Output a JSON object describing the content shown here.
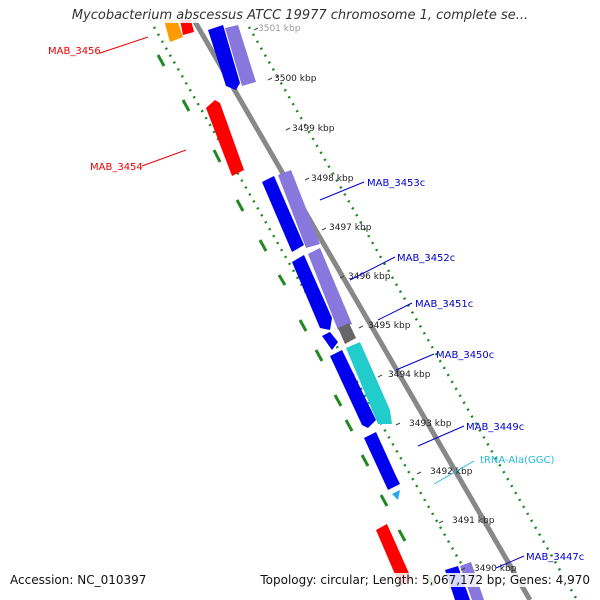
{
  "header": {
    "title": "Mycobacterium abscessus ATCC 19977 chromosome 1, complete se..."
  },
  "footer": {
    "accession": "Accession: NC_010397",
    "summary": "Topology: circular; Length: 5,067,172 bp; Genes: 4,970"
  },
  "ticks": [
    {
      "label": "3501 kbp"
    },
    {
      "label": "3500 kbp"
    },
    {
      "label": "3499 kbp"
    },
    {
      "label": "3498 kbp"
    },
    {
      "label": "3497 kbp"
    },
    {
      "label": "3496 kbp"
    },
    {
      "label": "3495 kbp"
    },
    {
      "label": "3494 kbp"
    },
    {
      "label": "3493 kbp"
    },
    {
      "label": "3492 kbp"
    },
    {
      "label": "3491 kbp"
    },
    {
      "label": "3490 kbp"
    }
  ],
  "gene_labels": [
    {
      "label": "MAB_3456",
      "color": "#ee0000"
    },
    {
      "label": "MAB_3454",
      "color": "#ee0000"
    },
    {
      "label": "MAB_3453c",
      "color": "#0000cc"
    },
    {
      "label": "MAB_3452c",
      "color": "#0000cc"
    },
    {
      "label": "MAB_3451c",
      "color": "#0000cc"
    },
    {
      "label": "MAB_3450c",
      "color": "#0000cc"
    },
    {
      "label": "MAB_3449c",
      "color": "#0000cc"
    },
    {
      "label": "tRNA-Ala(GGC)",
      "color": "#22bbdd"
    },
    {
      "label": "MAB_3447c",
      "color": "#0000cc"
    }
  ],
  "colors": {
    "forward_cds": "#ff0000",
    "reverse_cds": "#0000ee",
    "reverse_cds_light": "#8877dd",
    "trna": "#22cccc",
    "backbone": "#888888",
    "gc_ring": "#228822",
    "orange_feature": "#ff9900",
    "gray_feature": "#666666"
  }
}
